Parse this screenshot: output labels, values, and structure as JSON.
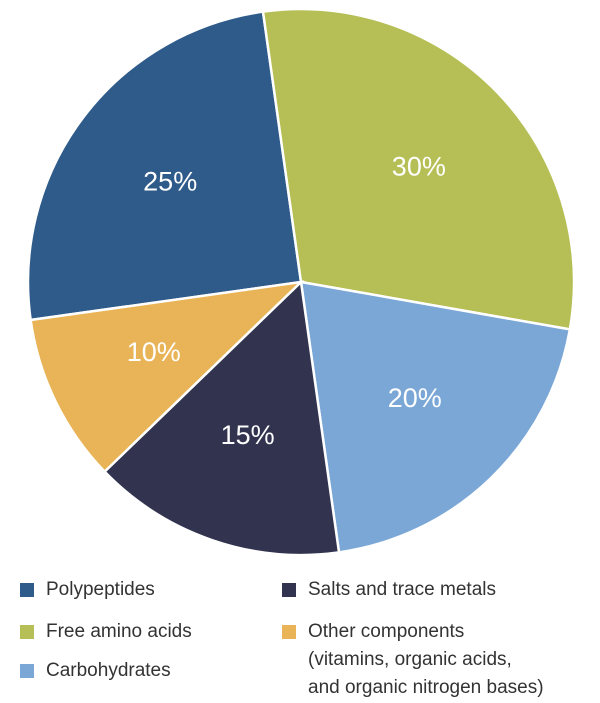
{
  "chart_data": {
    "type": "pie",
    "categories": [
      "Polypeptides",
      "Free amino acids",
      "Carbohydrates",
      "Salts and trace metals",
      "Other components\n(vitamins, organic acids,\nand organic nitrogen bases)"
    ],
    "values": [
      25,
      30,
      20,
      15,
      10
    ],
    "value_labels": [
      "25%",
      "30%",
      "20%",
      "15%",
      "10%"
    ],
    "colors": [
      "#2e5b8a",
      "#b5bf55",
      "#7ba7d6",
      "#32344f",
      "#e9b457"
    ]
  }
}
